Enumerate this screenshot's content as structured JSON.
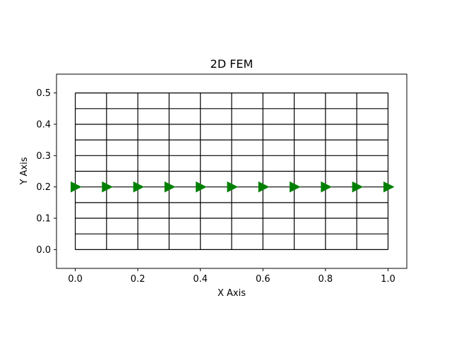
{
  "chart_data": {
    "type": "mesh",
    "title": "2D FEM",
    "xlabel": "X Axis",
    "ylabel": "Y Axis",
    "xlim": [
      -0.06,
      1.06
    ],
    "ylim": [
      -0.06,
      0.56
    ],
    "xticks": [
      0.0,
      0.2,
      0.4,
      0.6,
      0.8,
      1.0
    ],
    "xtick_labels": [
      "0.0",
      "0.2",
      "0.4",
      "0.6",
      "0.8",
      "1.0"
    ],
    "yticks": [
      0.0,
      0.1,
      0.2,
      0.3,
      0.4,
      0.5
    ],
    "ytick_labels": [
      "0.0",
      "0.1",
      "0.2",
      "0.3",
      "0.4",
      "0.5"
    ],
    "grid": false,
    "mesh": {
      "x_nodes": [
        0.0,
        0.1,
        0.2,
        0.3,
        0.4,
        0.5,
        0.6,
        0.7,
        0.8,
        0.9,
        1.0
      ],
      "y_nodes": [
        0.0,
        0.05,
        0.1,
        0.15,
        0.2,
        0.25,
        0.3,
        0.35,
        0.4,
        0.45,
        0.5
      ],
      "line_color": "#000000"
    },
    "series": [
      {
        "marker": "triangle-right",
        "color": "#008000",
        "x": [
          0.0,
          0.1,
          0.2,
          0.3,
          0.4,
          0.5,
          0.6,
          0.7,
          0.8,
          0.9,
          1.0
        ],
        "y": [
          0.2,
          0.2,
          0.2,
          0.2,
          0.2,
          0.2,
          0.2,
          0.2,
          0.2,
          0.2,
          0.2
        ]
      }
    ]
  }
}
